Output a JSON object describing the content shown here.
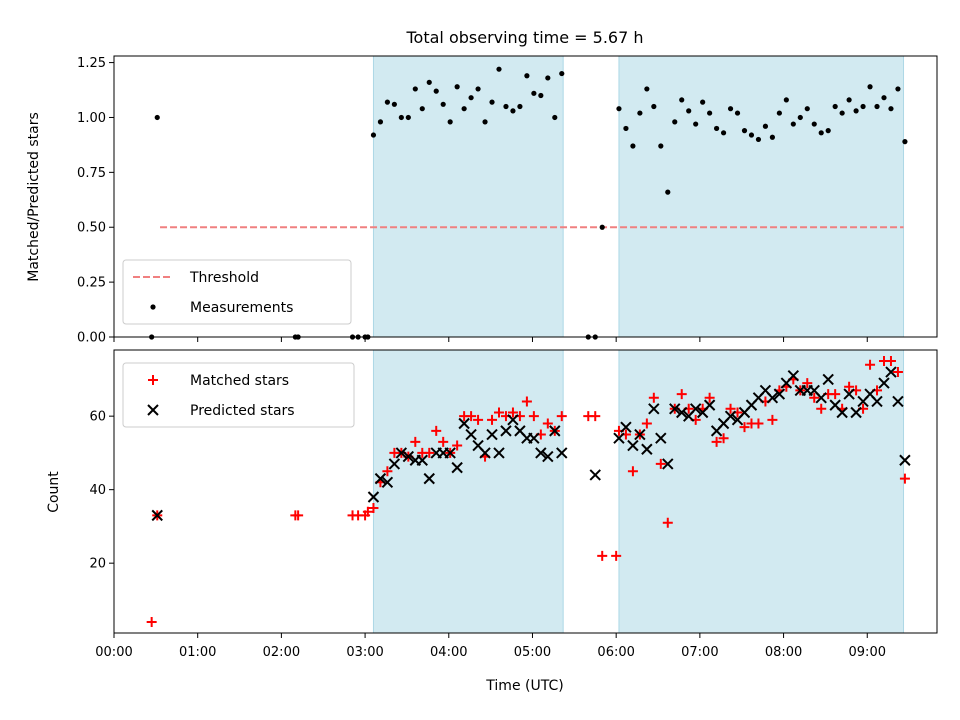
{
  "chart_data": [
    {
      "type": "scatter",
      "title": "Total observing time = 5.67 h",
      "xlabel": "",
      "ylabel": "Matched/Predicted stars",
      "xlim": [
        "00:00",
        "09:50"
      ],
      "ylim": [
        0,
        1.28
      ],
      "yticks": [
        0.0,
        0.25,
        0.5,
        0.75,
        1.0,
        1.25
      ],
      "ytick_labels": [
        "0.00",
        "0.25",
        "0.50",
        "0.75",
        "1.00",
        "1.25"
      ],
      "shaded_intervals": [
        [
          "03:06",
          "05:22"
        ],
        [
          "06:02",
          "09:26"
        ]
      ],
      "shade_color": "#add8e6",
      "threshold": {
        "name": "Threshold",
        "value": 0.5,
        "x": [
          "00:33",
          "09:26"
        ],
        "color": "#f08080",
        "style": "dashed"
      },
      "legend": [
        "Threshold",
        "Measurements"
      ],
      "legend_position": "lower-left",
      "series": [
        {
          "name": "Measurements",
          "marker": "dot",
          "color": "#000000",
          "points": [
            [
              "00:27",
              0.0
            ],
            [
              "00:31",
              1.0
            ],
            [
              "02:10",
              0.0
            ],
            [
              "02:12",
              0.0
            ],
            [
              "02:51",
              0.0
            ],
            [
              "02:55",
              0.0
            ],
            [
              "03:00",
              0.0
            ],
            [
              "03:02",
              0.0
            ],
            [
              "03:06",
              0.92
            ],
            [
              "03:11",
              0.98
            ],
            [
              "03:16",
              1.07
            ],
            [
              "03:21",
              1.06
            ],
            [
              "03:26",
              1.0
            ],
            [
              "03:31",
              1.0
            ],
            [
              "03:36",
              1.13
            ],
            [
              "03:41",
              1.04
            ],
            [
              "03:46",
              1.16
            ],
            [
              "03:51",
              1.12
            ],
            [
              "03:56",
              1.06
            ],
            [
              "04:01",
              0.98
            ],
            [
              "04:06",
              1.14
            ],
            [
              "04:11",
              1.04
            ],
            [
              "04:16",
              1.09
            ],
            [
              "04:21",
              1.13
            ],
            [
              "04:26",
              0.98
            ],
            [
              "04:31",
              1.07
            ],
            [
              "04:36",
              1.22
            ],
            [
              "04:41",
              1.05
            ],
            [
              "04:46",
              1.03
            ],
            [
              "04:51",
              1.05
            ],
            [
              "04:56",
              1.19
            ],
            [
              "05:01",
              1.11
            ],
            [
              "05:06",
              1.1
            ],
            [
              "05:11",
              1.18
            ],
            [
              "05:16",
              1.0
            ],
            [
              "05:21",
              1.2
            ],
            [
              "05:40",
              0.0
            ],
            [
              "05:45",
              0.0
            ],
            [
              "05:50",
              0.5
            ],
            [
              "06:02",
              1.04
            ],
            [
              "06:07",
              0.95
            ],
            [
              "06:12",
              0.87
            ],
            [
              "06:17",
              1.02
            ],
            [
              "06:22",
              1.13
            ],
            [
              "06:27",
              1.05
            ],
            [
              "06:32",
              0.87
            ],
            [
              "06:37",
              0.66
            ],
            [
              "06:42",
              0.98
            ],
            [
              "06:47",
              1.08
            ],
            [
              "06:52",
              1.03
            ],
            [
              "06:57",
              0.97
            ],
            [
              "07:02",
              1.07
            ],
            [
              "07:07",
              1.02
            ],
            [
              "07:12",
              0.95
            ],
            [
              "07:17",
              0.93
            ],
            [
              "07:22",
              1.04
            ],
            [
              "07:27",
              1.02
            ],
            [
              "07:32",
              0.94
            ],
            [
              "07:37",
              0.92
            ],
            [
              "07:42",
              0.9
            ],
            [
              "07:47",
              0.96
            ],
            [
              "07:52",
              0.91
            ],
            [
              "07:57",
              1.02
            ],
            [
              "08:02",
              1.08
            ],
            [
              "08:07",
              0.97
            ],
            [
              "08:12",
              1.0
            ],
            [
              "08:17",
              1.04
            ],
            [
              "08:22",
              0.97
            ],
            [
              "08:27",
              0.93
            ],
            [
              "08:32",
              0.94
            ],
            [
              "08:37",
              1.05
            ],
            [
              "08:42",
              1.02
            ],
            [
              "08:47",
              1.08
            ],
            [
              "08:52",
              1.03
            ],
            [
              "08:57",
              1.05
            ],
            [
              "09:02",
              1.14
            ],
            [
              "09:07",
              1.05
            ],
            [
              "09:12",
              1.09
            ],
            [
              "09:17",
              1.04
            ],
            [
              "09:22",
              1.13
            ],
            [
              "09:27",
              0.89
            ]
          ]
        }
      ]
    },
    {
      "type": "scatter",
      "title": "",
      "xlabel": "Time (UTC)",
      "ylabel": "Count",
      "xlim": [
        "00:00",
        "09:50"
      ],
      "ylim": [
        1,
        78
      ],
      "yticks": [
        20,
        40,
        60
      ],
      "ytick_labels": [
        "20",
        "40",
        "60"
      ],
      "xticks": [
        "00:00",
        "01:00",
        "02:00",
        "03:00",
        "04:00",
        "05:00",
        "06:00",
        "07:00",
        "08:00",
        "09:00"
      ],
      "xtick_labels": [
        "00:00",
        "01:00",
        "02:00",
        "03:00",
        "04:00",
        "05:00",
        "06:00",
        "07:00",
        "08:00",
        "09:00"
      ],
      "shaded_intervals": [
        [
          "03:06",
          "05:22"
        ],
        [
          "06:02",
          "09:26"
        ]
      ],
      "legend": [
        "Matched stars",
        "Predicted stars"
      ],
      "legend_position": "upper-left",
      "series": [
        {
          "name": "Matched stars",
          "marker": "plus",
          "color": "#ff0000",
          "points": [
            [
              "00:27",
              4
            ],
            [
              "00:31",
              33
            ],
            [
              "02:10",
              33
            ],
            [
              "02:12",
              33
            ],
            [
              "02:51",
              33
            ],
            [
              "02:55",
              33
            ],
            [
              "03:00",
              33
            ],
            [
              "03:02",
              34
            ],
            [
              "03:06",
              35
            ],
            [
              "03:11",
              42
            ],
            [
              "03:16",
              45
            ],
            [
              "03:21",
              50
            ],
            [
              "03:26",
              50
            ],
            [
              "03:31",
              49
            ],
            [
              "03:36",
              53
            ],
            [
              "03:41",
              50
            ],
            [
              "03:46",
              50
            ],
            [
              "03:51",
              56
            ],
            [
              "03:56",
              53
            ],
            [
              "04:01",
              50
            ],
            [
              "04:06",
              52
            ],
            [
              "04:11",
              60
            ],
            [
              "04:16",
              60
            ],
            [
              "04:21",
              59
            ],
            [
              "04:26",
              49
            ],
            [
              "04:31",
              59
            ],
            [
              "04:36",
              61
            ],
            [
              "04:41",
              60
            ],
            [
              "04:46",
              61
            ],
            [
              "04:51",
              60
            ],
            [
              "04:56",
              64
            ],
            [
              "05:01",
              60
            ],
            [
              "05:06",
              55
            ],
            [
              "05:11",
              58
            ],
            [
              "05:16",
              56
            ],
            [
              "05:21",
              60
            ],
            [
              "05:40",
              60
            ],
            [
              "05:45",
              60
            ],
            [
              "05:50",
              22
            ],
            [
              "06:00",
              22
            ],
            [
              "06:02",
              56
            ],
            [
              "06:07",
              55
            ],
            [
              "06:12",
              45
            ],
            [
              "06:17",
              55
            ],
            [
              "06:22",
              58
            ],
            [
              "06:27",
              65
            ],
            [
              "06:32",
              47
            ],
            [
              "06:37",
              31
            ],
            [
              "06:42",
              62
            ],
            [
              "06:47",
              66
            ],
            [
              "06:52",
              62
            ],
            [
              "06:57",
              59
            ],
            [
              "07:02",
              62
            ],
            [
              "07:07",
              65
            ],
            [
              "07:12",
              53
            ],
            [
              "07:17",
              54
            ],
            [
              "07:22",
              62
            ],
            [
              "07:27",
              61
            ],
            [
              "07:32",
              57
            ],
            [
              "07:37",
              58
            ],
            [
              "07:42",
              58
            ],
            [
              "07:47",
              64
            ],
            [
              "07:52",
              59
            ],
            [
              "07:57",
              67
            ],
            [
              "08:02",
              68
            ],
            [
              "08:07",
              70
            ],
            [
              "08:12",
              67
            ],
            [
              "08:17",
              69
            ],
            [
              "08:22",
              65
            ],
            [
              "08:27",
              62
            ],
            [
              "08:32",
              66
            ],
            [
              "08:37",
              66
            ],
            [
              "08:42",
              62
            ],
            [
              "08:47",
              68
            ],
            [
              "08:52",
              67
            ],
            [
              "08:57",
              62
            ],
            [
              "09:02",
              74
            ],
            [
              "09:07",
              67
            ],
            [
              "09:12",
              75
            ],
            [
              "09:17",
              75
            ],
            [
              "09:22",
              72
            ],
            [
              "09:27",
              43
            ]
          ]
        },
        {
          "name": "Predicted stars",
          "marker": "cross",
          "color": "#000000",
          "points": [
            [
              "00:31",
              33
            ],
            [
              "03:06",
              38
            ],
            [
              "03:11",
              43
            ],
            [
              "03:16",
              42
            ],
            [
              "03:21",
              47
            ],
            [
              "03:26",
              50
            ],
            [
              "03:31",
              49
            ],
            [
              "03:36",
              48
            ],
            [
              "03:41",
              48
            ],
            [
              "03:46",
              43
            ],
            [
              "03:51",
              50
            ],
            [
              "03:56",
              50
            ],
            [
              "04:01",
              50
            ],
            [
              "04:06",
              46
            ],
            [
              "04:11",
              58
            ],
            [
              "04:16",
              55
            ],
            [
              "04:21",
              52
            ],
            [
              "04:26",
              50
            ],
            [
              "04:31",
              55
            ],
            [
              "04:36",
              50
            ],
            [
              "04:41",
              56
            ],
            [
              "04:46",
              59
            ],
            [
              "04:51",
              56
            ],
            [
              "04:56",
              54
            ],
            [
              "05:01",
              54
            ],
            [
              "05:06",
              50
            ],
            [
              "05:11",
              49
            ],
            [
              "05:16",
              56
            ],
            [
              "05:21",
              50
            ],
            [
              "05:45",
              44
            ],
            [
              "06:02",
              54
            ],
            [
              "06:07",
              57
            ],
            [
              "06:12",
              52
            ],
            [
              "06:17",
              55
            ],
            [
              "06:22",
              51
            ],
            [
              "06:27",
              62
            ],
            [
              "06:32",
              54
            ],
            [
              "06:37",
              47
            ],
            [
              "06:42",
              62
            ],
            [
              "06:47",
              61
            ],
            [
              "06:52",
              60
            ],
            [
              "06:57",
              62
            ],
            [
              "07:02",
              61
            ],
            [
              "07:07",
              63
            ],
            [
              "07:12",
              56
            ],
            [
              "07:17",
              58
            ],
            [
              "07:22",
              60
            ],
            [
              "07:27",
              59
            ],
            [
              "07:32",
              61
            ],
            [
              "07:37",
              63
            ],
            [
              "07:42",
              65
            ],
            [
              "07:47",
              67
            ],
            [
              "07:52",
              65
            ],
            [
              "07:57",
              66
            ],
            [
              "08:02",
              69
            ],
            [
              "08:07",
              71
            ],
            [
              "08:12",
              67
            ],
            [
              "08:17",
              67
            ],
            [
              "08:22",
              67
            ],
            [
              "08:27",
              65
            ],
            [
              "08:32",
              70
            ],
            [
              "08:37",
              63
            ],
            [
              "08:42",
              61
            ],
            [
              "08:47",
              66
            ],
            [
              "08:52",
              61
            ],
            [
              "08:57",
              64
            ],
            [
              "09:02",
              66
            ],
            [
              "09:07",
              64
            ],
            [
              "09:12",
              69
            ],
            [
              "09:17",
              72
            ],
            [
              "09:22",
              64
            ],
            [
              "09:27",
              48
            ]
          ]
        }
      ]
    }
  ]
}
